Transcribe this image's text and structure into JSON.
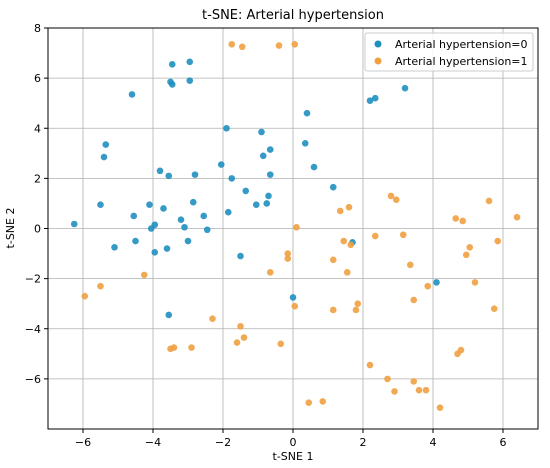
{
  "chart_data": {
    "type": "scatter",
    "title": "t-SNE: Arterial hypertension",
    "xlabel": "t-SNE 1",
    "ylabel": "t-SNE 2",
    "xlim": [
      -7,
      7
    ],
    "ylim": [
      -8,
      8
    ],
    "xticks": [
      -6,
      -4,
      -2,
      0,
      2,
      4,
      6
    ],
    "yticks": [
      -6,
      -4,
      -2,
      0,
      2,
      4,
      6,
      8
    ],
    "grid": true,
    "legend_position": "top-right",
    "series": [
      {
        "name": "Arterial hypertension=0",
        "color": "#1f8fc0",
        "points": [
          [
            -6.25,
            0.18
          ],
          [
            -5.5,
            0.95
          ],
          [
            -5.35,
            3.35
          ],
          [
            -5.4,
            2.85
          ],
          [
            -5.1,
            -0.75
          ],
          [
            -4.6,
            5.35
          ],
          [
            -4.55,
            0.5
          ],
          [
            -4.5,
            -0.5
          ],
          [
            -4.1,
            0.95
          ],
          [
            -4.05,
            0.0
          ],
          [
            -3.95,
            -0.95
          ],
          [
            -3.95,
            0.15
          ],
          [
            -3.8,
            2.3
          ],
          [
            -3.7,
            0.8
          ],
          [
            -3.6,
            -0.8
          ],
          [
            -3.55,
            2.1
          ],
          [
            -3.55,
            -3.45
          ],
          [
            -3.5,
            5.85
          ],
          [
            -3.45,
            5.75
          ],
          [
            -3.45,
            6.55
          ],
          [
            -3.2,
            0.35
          ],
          [
            -3.1,
            0.05
          ],
          [
            -3.0,
            -0.5
          ],
          [
            -2.95,
            5.9
          ],
          [
            -2.95,
            6.65
          ],
          [
            -2.85,
            1.05
          ],
          [
            -2.8,
            2.15
          ],
          [
            -2.55,
            0.5
          ],
          [
            -2.45,
            -0.05
          ],
          [
            -2.05,
            2.55
          ],
          [
            -1.9,
            4.0
          ],
          [
            -1.85,
            0.65
          ],
          [
            -1.75,
            2.0
          ],
          [
            -1.5,
            -1.1
          ],
          [
            -1.35,
            1.5
          ],
          [
            -1.05,
            0.95
          ],
          [
            -0.9,
            3.85
          ],
          [
            -0.85,
            2.9
          ],
          [
            -0.75,
            1.0
          ],
          [
            -0.7,
            1.3
          ],
          [
            -0.65,
            3.15
          ],
          [
            -0.65,
            2.15
          ],
          [
            0.0,
            -2.75
          ],
          [
            0.35,
            3.4
          ],
          [
            0.4,
            4.6
          ],
          [
            0.6,
            2.45
          ],
          [
            1.15,
            1.65
          ],
          [
            1.7,
            -0.55
          ],
          [
            2.2,
            5.1
          ],
          [
            2.35,
            5.2
          ],
          [
            3.2,
            5.6
          ],
          [
            4.1,
            -2.15
          ]
        ]
      },
      {
        "name": "Arterial hypertension=1",
        "color": "#f0a040",
        "points": [
          [
            -5.95,
            -2.7
          ],
          [
            -5.5,
            -2.3
          ],
          [
            -4.25,
            -1.85
          ],
          [
            -3.5,
            -4.8
          ],
          [
            -3.4,
            -4.75
          ],
          [
            -2.9,
            -4.75
          ],
          [
            -2.3,
            -3.6
          ],
          [
            -1.75,
            7.35
          ],
          [
            -1.45,
            7.25
          ],
          [
            -1.6,
            -4.55
          ],
          [
            -1.5,
            -3.9
          ],
          [
            -1.4,
            -4.35
          ],
          [
            -0.65,
            -1.75
          ],
          [
            -0.4,
            7.3
          ],
          [
            -0.35,
            -4.6
          ],
          [
            -0.15,
            -1.0
          ],
          [
            -0.15,
            -1.2
          ],
          [
            0.05,
            7.35
          ],
          [
            0.05,
            -3.1
          ],
          [
            0.1,
            0.05
          ],
          [
            0.45,
            -6.95
          ],
          [
            0.85,
            -6.9
          ],
          [
            1.15,
            -1.25
          ],
          [
            1.15,
            -3.25
          ],
          [
            1.35,
            0.7
          ],
          [
            1.45,
            -0.5
          ],
          [
            1.55,
            -1.75
          ],
          [
            1.6,
            0.85
          ],
          [
            1.65,
            -0.65
          ],
          [
            1.8,
            -3.25
          ],
          [
            1.85,
            -3.0
          ],
          [
            2.2,
            -5.45
          ],
          [
            2.35,
            -0.3
          ],
          [
            2.7,
            -6.0
          ],
          [
            2.8,
            1.3
          ],
          [
            2.9,
            -6.5
          ],
          [
            2.95,
            1.15
          ],
          [
            3.15,
            -0.25
          ],
          [
            3.35,
            -1.45
          ],
          [
            3.45,
            -2.85
          ],
          [
            3.45,
            -6.1
          ],
          [
            3.6,
            -6.45
          ],
          [
            3.8,
            -6.45
          ],
          [
            3.85,
            -2.3
          ],
          [
            4.2,
            -7.15
          ],
          [
            4.65,
            0.4
          ],
          [
            4.7,
            -5.0
          ],
          [
            4.8,
            -4.85
          ],
          [
            4.85,
            0.3
          ],
          [
            4.95,
            -1.05
          ],
          [
            5.05,
            -0.75
          ],
          [
            5.2,
            -2.15
          ],
          [
            5.6,
            1.1
          ],
          [
            5.75,
            -3.2
          ],
          [
            5.85,
            -0.5
          ],
          [
            6.4,
            0.45
          ]
        ]
      }
    ]
  }
}
